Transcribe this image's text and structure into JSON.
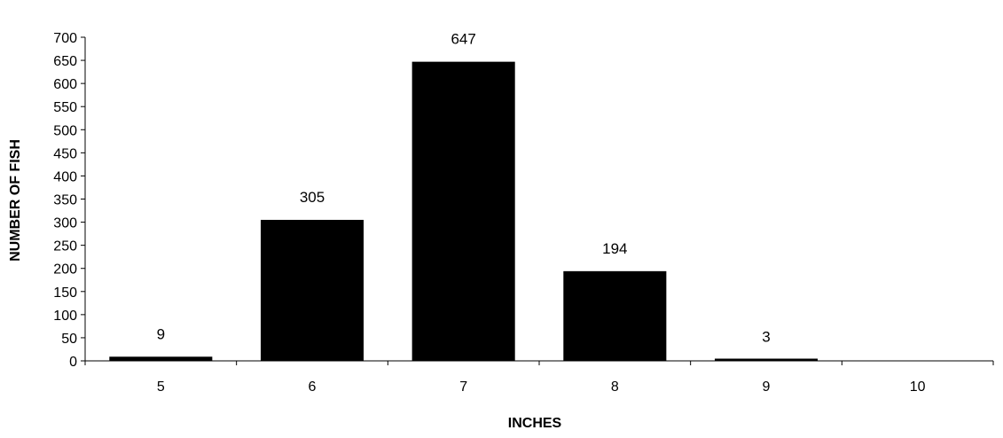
{
  "chart_data": {
    "type": "bar",
    "title": "",
    "xlabel": "INCHES",
    "ylabel": "NUMBER OF FISH",
    "categories": [
      "5",
      "6",
      "7",
      "8",
      "9",
      "10"
    ],
    "values": [
      9,
      305,
      647,
      194,
      3,
      null
    ],
    "data_labels": [
      "9",
      "305",
      "647",
      "194",
      "3",
      ""
    ],
    "ylim": [
      0,
      700
    ],
    "yticks": [
      "0",
      "50",
      "100",
      "150",
      "200",
      "250",
      "300",
      "350",
      "400",
      "450",
      "500",
      "550",
      "600",
      "650",
      "700"
    ],
    "grid": false,
    "legend": "none",
    "bar_color": "#000000"
  }
}
